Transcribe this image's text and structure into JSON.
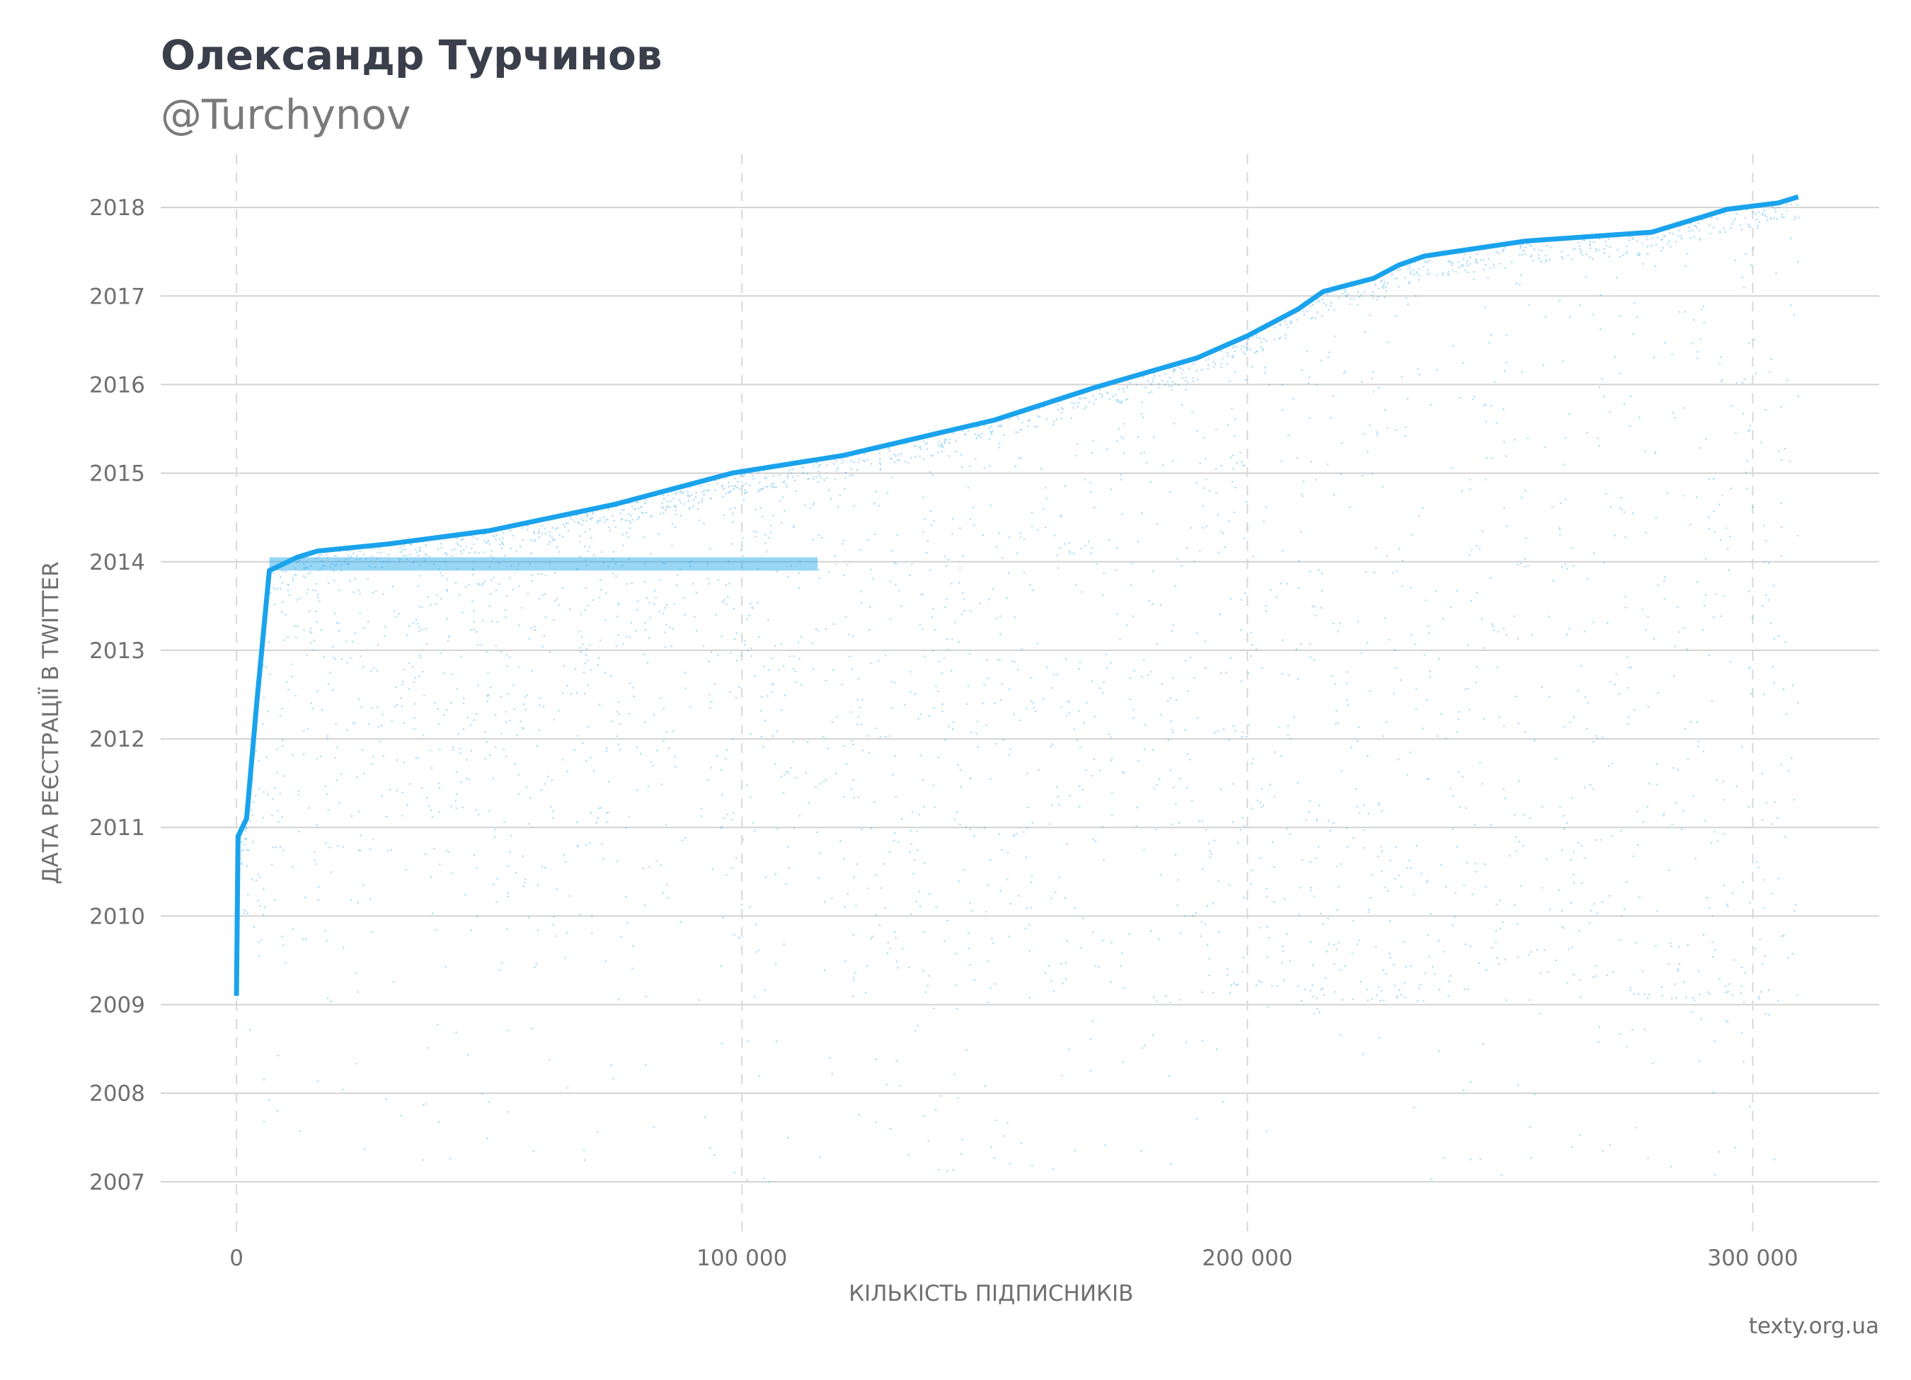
{
  "header": {
    "title": "Олександр Турчинов",
    "subtitle": "@Turchynov"
  },
  "footer": {
    "credit": "texty.org.ua"
  },
  "colors": {
    "points": "#1aa3ec",
    "grid": "#d2d2d2",
    "vgrid": "#d8d8d8"
  },
  "chart_data": {
    "type": "scatter",
    "xlabel": "КІЛЬКІСТЬ ПІДПИСНИКІВ",
    "ylabel": "ДАТА РЕЄСТРАЦІЇ В TWITTER",
    "xlim": [
      -15000,
      325000
    ],
    "ylim": [
      2006.4,
      2018.6
    ],
    "x_ticks": [
      0,
      100000,
      200000,
      300000
    ],
    "x_tick_labels": [
      "0",
      "100 000",
      "200 000",
      "300 000"
    ],
    "y_ticks": [
      2007,
      2008,
      2009,
      2010,
      2011,
      2012,
      2013,
      2014,
      2015,
      2016,
      2017,
      2018
    ],
    "y_tick_labels": [
      "2007",
      "2008",
      "2009",
      "2010",
      "2011",
      "2012",
      "2013",
      "2014",
      "2015",
      "2016",
      "2017",
      "2018"
    ],
    "grid": "horizontal solid, vertical dashed at x ticks",
    "total_followers": 309000,
    "upper_envelope": [
      [
        0,
        2009.1
      ],
      [
        300,
        2010.9
      ],
      [
        2000,
        2011.1
      ],
      [
        4000,
        2012.4
      ],
      [
        6500,
        2013.9
      ],
      [
        12000,
        2014.05
      ],
      [
        16000,
        2014.12
      ],
      [
        30000,
        2014.2
      ],
      [
        50000,
        2014.35
      ],
      [
        75000,
        2014.65
      ],
      [
        98000,
        2015.0
      ],
      [
        120000,
        2015.2
      ],
      [
        150000,
        2015.6
      ],
      [
        170000,
        2015.97
      ],
      [
        190000,
        2016.3
      ],
      [
        200000,
        2016.55
      ],
      [
        210000,
        2016.85
      ],
      [
        215000,
        2017.05
      ],
      [
        225000,
        2017.2
      ],
      [
        230000,
        2017.35
      ],
      [
        235000,
        2017.45
      ],
      [
        255000,
        2017.62
      ],
      [
        280000,
        2017.72
      ],
      [
        295000,
        2017.98
      ],
      [
        305000,
        2018.05
      ],
      [
        309000,
        2018.12
      ]
    ],
    "min_date": 2007.0,
    "point_count": 30000
  }
}
